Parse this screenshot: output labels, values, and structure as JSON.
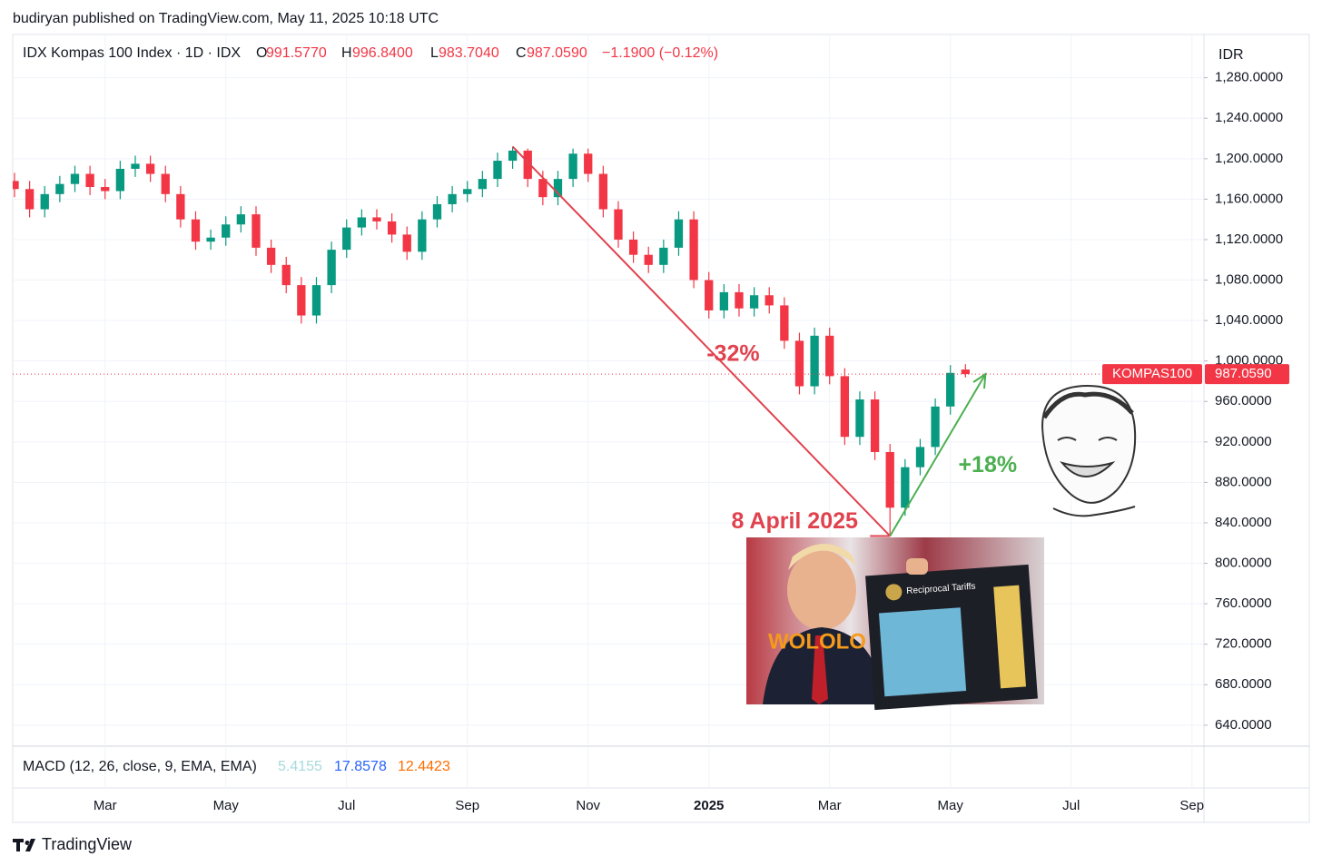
{
  "header": {
    "publisher": "budiryan published on TradingView.com, May 11, 2025 10:18 UTC",
    "footer": "TradingView"
  },
  "chart_data": {
    "type": "candlestick",
    "title": "IDX Kompas 100 Index · 1D · IDX",
    "legend_values": [
      "O",
      "991.5770",
      "H",
      "996.8400",
      "L",
      "983.7040",
      "C",
      "987.0590",
      "−1.1900 (−0.12%)"
    ],
    "currency": "IDR",
    "up_color": "#089981",
    "down_color": "#f23645",
    "x": [
      1.5,
      1.75,
      2,
      2.25,
      2.5,
      2.75,
      3,
      3.25,
      3.5,
      3.75,
      4,
      4.25,
      4.5,
      4.75,
      5,
      5.25,
      5.5,
      5.75,
      6,
      6.25,
      6.5,
      6.75,
      7,
      7.25,
      7.5,
      7.75,
      8,
      8.25,
      8.5,
      8.75,
      9,
      9.25,
      9.5,
      9.75,
      10,
      10.25,
      10.5,
      10.75,
      11,
      11.25,
      11.5,
      11.75,
      12,
      12.25,
      12.5,
      12.75,
      13,
      13.25,
      13.5,
      13.75,
      14,
      14.25,
      14.5,
      14.75,
      15,
      15.25,
      15.5,
      15.75,
      16,
      16.25,
      16.5,
      16.75,
      17,
      17.25
    ],
    "open": [
      1178,
      1170,
      1150,
      1165,
      1175,
      1185,
      1172,
      1168,
      1190,
      1195,
      1185,
      1165,
      1140,
      1118,
      1122,
      1135,
      1145,
      1112,
      1095,
      1075,
      1045,
      1075,
      1110,
      1132,
      1142,
      1138,
      1125,
      1108,
      1140,
      1155,
      1165,
      1170,
      1180,
      1198,
      1208,
      1180,
      1162,
      1180,
      1205,
      1185,
      1150,
      1120,
      1105,
      1095,
      1112,
      1140,
      1080,
      1050,
      1068,
      1052,
      1065,
      1055,
      1020,
      975,
      1025,
      985,
      925,
      962,
      910,
      855,
      895,
      915,
      955,
      991.577
    ],
    "high": [
      1186,
      1178,
      1173,
      1183,
      1193,
      1193,
      1180,
      1198,
      1203,
      1203,
      1193,
      1173,
      1148,
      1130,
      1143,
      1153,
      1153,
      1120,
      1103,
      1083,
      1083,
      1118,
      1140,
      1150,
      1150,
      1146,
      1133,
      1148,
      1163,
      1173,
      1178,
      1188,
      1206,
      1212,
      1210,
      1188,
      1188,
      1210,
      1210,
      1193,
      1158,
      1128,
      1113,
      1120,
      1148,
      1148,
      1088,
      1076,
      1076,
      1073,
      1073,
      1063,
      1028,
      1033,
      1033,
      993,
      970,
      970,
      918,
      903,
      923,
      963,
      996,
      996.84
    ],
    "low": [
      1162,
      1142,
      1142,
      1157,
      1167,
      1164,
      1160,
      1160,
      1182,
      1177,
      1157,
      1132,
      1110,
      1110,
      1114,
      1127,
      1104,
      1087,
      1067,
      1037,
      1037,
      1067,
      1102,
      1124,
      1130,
      1117,
      1100,
      1100,
      1132,
      1147,
      1157,
      1162,
      1172,
      1190,
      1172,
      1154,
      1154,
      1172,
      1177,
      1142,
      1112,
      1097,
      1087,
      1087,
      1104,
      1072,
      1042,
      1042,
      1044,
      1044,
      1047,
      1012,
      967,
      967,
      977,
      917,
      917,
      902,
      827,
      847,
      887,
      907,
      947,
      983.704
    ],
    "close": [
      1170,
      1150,
      1165,
      1175,
      1185,
      1172,
      1168,
      1190,
      1195,
      1185,
      1165,
      1140,
      1118,
      1122,
      1135,
      1145,
      1112,
      1095,
      1075,
      1045,
      1075,
      1110,
      1132,
      1142,
      1138,
      1125,
      1108,
      1140,
      1155,
      1165,
      1170,
      1180,
      1198,
      1208,
      1180,
      1162,
      1180,
      1205,
      1185,
      1150,
      1120,
      1105,
      1095,
      1112,
      1140,
      1080,
      1050,
      1068,
      1052,
      1065,
      1055,
      1020,
      975,
      1025,
      985,
      925,
      962,
      910,
      855,
      895,
      915,
      955,
      988.249,
      987.059
    ],
    "xlim": [
      1.47,
      21.2
    ],
    "xticks": [
      {
        "value": 3,
        "label": "Mar"
      },
      {
        "value": 5,
        "label": "May"
      },
      {
        "value": 7,
        "label": "Jul"
      },
      {
        "value": 9,
        "label": "Sep"
      },
      {
        "value": 11,
        "label": "Nov"
      },
      {
        "value": 13,
        "label": "2025",
        "bold": true
      },
      {
        "value": 15,
        "label": "Mar"
      },
      {
        "value": 17,
        "label": "May"
      },
      {
        "value": 19,
        "label": "Jul"
      },
      {
        "value": 21,
        "label": "Sep"
      }
    ],
    "ylim": [
      621,
      1321
    ],
    "yticks": [
      {
        "value": 640,
        "label": "640.0000"
      },
      {
        "value": 680,
        "label": "680.0000"
      },
      {
        "value": 720,
        "label": "720.0000"
      },
      {
        "value": 760,
        "label": "760.0000"
      },
      {
        "value": 800,
        "label": "800.0000"
      },
      {
        "value": 840,
        "label": "840.0000"
      },
      {
        "value": 880,
        "label": "880.0000"
      },
      {
        "value": 920,
        "label": "920.0000"
      },
      {
        "value": 960,
        "label": "960.0000"
      },
      {
        "value": 1000,
        "label": "1,000.0000"
      },
      {
        "value": 1040,
        "label": "1,040.0000"
      },
      {
        "value": 1080,
        "label": "1,080.0000"
      },
      {
        "value": 1120,
        "label": "1,120.0000"
      },
      {
        "value": 1160,
        "label": "1,160.0000"
      },
      {
        "value": 1200,
        "label": "1,200.0000"
      },
      {
        "value": 1240,
        "label": "1,240.0000"
      },
      {
        "value": 1280,
        "label": "1,280.0000"
      }
    ],
    "grid": true,
    "last_price": {
      "value": 987.059,
      "label": "987.0590",
      "name": "KOMPAS100"
    },
    "annotations": {
      "drop": "-32%",
      "rise": "+18%",
      "date": "8 April 2025",
      "image_caption": "WOLOLO",
      "image_board": "Reciprocal Tariffs"
    },
    "macd": {
      "title": "MACD (12, 26, close, 9, EMA, EMA)",
      "values": [
        "5.4155",
        "17.8578",
        "12.4423"
      ],
      "colors": [
        "#a8dadc",
        "#2962ff",
        "#ff6d00"
      ]
    }
  }
}
